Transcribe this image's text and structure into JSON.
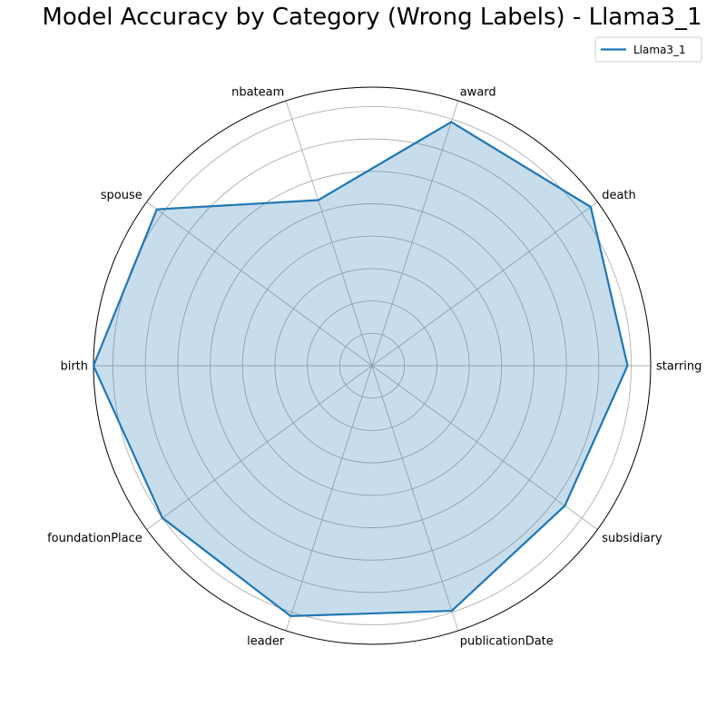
{
  "chart_data": {
    "type": "radar",
    "title": "Model Accuracy by Category (Wrong Labels) - Llama3_1",
    "categories": [
      "starring",
      "death",
      "award",
      "nbateam",
      "spouse",
      "birth",
      "foundationPlace",
      "leader",
      "publicationDate",
      "subsidiary"
    ],
    "series": [
      {
        "name": "Llama3_1",
        "values": [
          0.917,
          0.97,
          0.92,
          0.625,
          0.955,
          1.0,
          0.93,
          0.945,
          0.925,
          0.855
        ],
        "color": "#1f77b4"
      }
    ],
    "rlim": [
      0,
      1.0
    ],
    "grid": true,
    "legend": "top-right"
  }
}
